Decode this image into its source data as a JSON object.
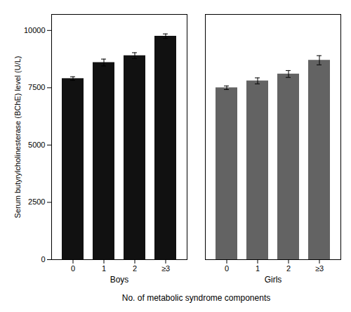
{
  "chart_data": {
    "type": "bar",
    "categories": [
      "0",
      "1",
      "2",
      "≥3"
    ],
    "series": [
      {
        "name": "Boys",
        "color": "#111111",
        "values": [
          7900,
          8600,
          8900,
          9750
        ],
        "errors": [
          80,
          150,
          130,
          100
        ]
      },
      {
        "name": "Girls",
        "color": "#636363",
        "values": [
          7500,
          7800,
          8100,
          8700
        ],
        "errors": [
          80,
          130,
          150,
          200
        ]
      }
    ],
    "xlabel": "No. of metabolic syndrome components",
    "ylabel": "Serum butyrylcholinesterase (BChE) level (U/L)",
    "ylim": [
      0,
      10700
    ],
    "yticks": [
      0,
      2500,
      5000,
      7500,
      10000
    ],
    "grid": false
  }
}
